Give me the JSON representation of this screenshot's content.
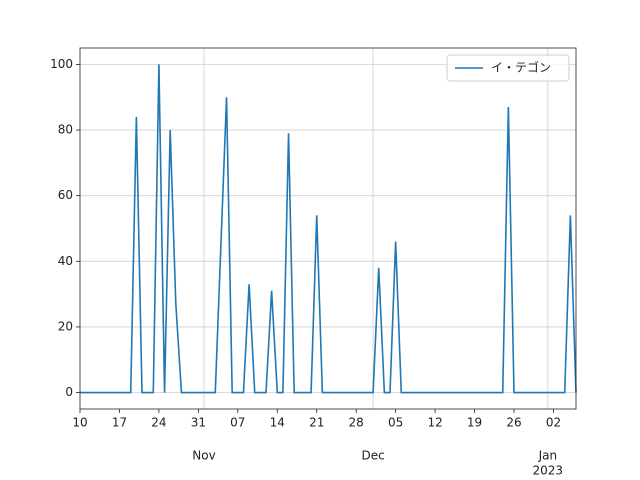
{
  "chart_data": {
    "type": "line",
    "x": [
      "2022-10-10",
      "2022-10-19",
      "2022-10-20",
      "2022-10-21",
      "2022-10-23",
      "2022-10-24",
      "2022-10-25",
      "2022-10-26",
      "2022-10-27",
      "2022-10-28",
      "2022-11-03",
      "2022-11-05",
      "2022-11-06",
      "2022-11-08",
      "2022-11-09",
      "2022-11-10",
      "2022-11-12",
      "2022-11-13",
      "2022-11-14",
      "2022-11-15",
      "2022-11-16",
      "2022-11-17",
      "2022-11-20",
      "2022-11-21",
      "2022-11-22",
      "2022-12-01",
      "2022-12-02",
      "2022-12-03",
      "2022-12-04",
      "2022-12-05",
      "2022-12-06",
      "2022-12-24",
      "2022-12-25",
      "2022-12-26",
      "2023-01-04",
      "2023-01-05",
      "2023-01-06"
    ],
    "series": [
      {
        "name": "イ・テゴン",
        "color": "#1f77b4",
        "values": [
          0,
          0,
          84,
          0,
          0,
          100,
          0,
          80,
          27,
          0,
          0,
          90,
          0,
          0,
          33,
          0,
          0,
          31,
          0,
          0,
          79,
          0,
          0,
          54,
          0,
          0,
          38,
          0,
          0,
          46,
          0,
          0,
          87,
          0,
          0,
          54,
          0
        ]
      }
    ],
    "xlim": [
      "2022-10-10",
      "2023-01-06"
    ],
    "xticks": [
      {
        "value": "2022-10-10",
        "label": "10"
      },
      {
        "value": "2022-10-17",
        "label": "17"
      },
      {
        "value": "2022-10-24",
        "label": "24"
      },
      {
        "value": "2022-10-31",
        "label": "31"
      },
      {
        "value": "2022-11-07",
        "label": "07"
      },
      {
        "value": "2022-11-14",
        "label": "14"
      },
      {
        "value": "2022-11-21",
        "label": "21"
      },
      {
        "value": "2022-11-28",
        "label": "28"
      },
      {
        "value": "2022-12-05",
        "label": "05"
      },
      {
        "value": "2022-12-12",
        "label": "12"
      },
      {
        "value": "2022-12-19",
        "label": "19"
      },
      {
        "value": "2022-12-26",
        "label": "26"
      },
      {
        "value": "2023-01-02",
        "label": "02"
      }
    ],
    "month_ticks": [
      {
        "value": "2022-11-01",
        "label": "Nov"
      },
      {
        "value": "2022-12-01",
        "label": "Dec"
      },
      {
        "value": "2023-01-01",
        "label": "Jan"
      }
    ],
    "year_ticks": [
      {
        "value": "2023-01-01",
        "label": "2023"
      }
    ],
    "ylim": [
      -5,
      105
    ],
    "yticks": [
      0,
      20,
      40,
      60,
      80,
      100
    ],
    "grid": true,
    "legend": "upper right"
  }
}
